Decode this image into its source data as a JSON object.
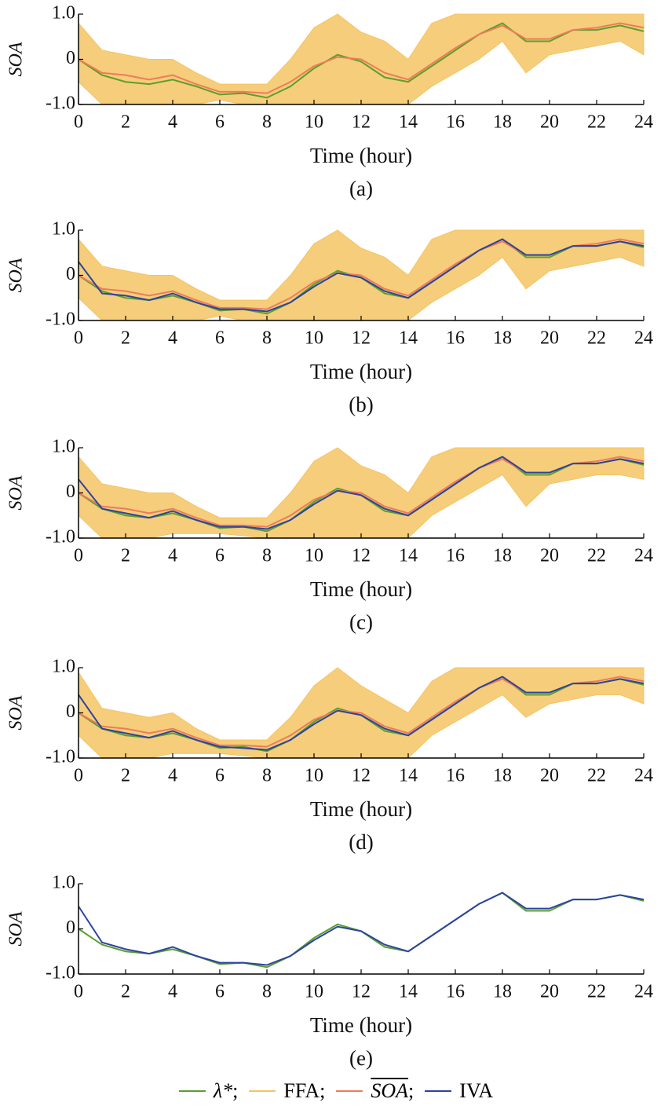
{
  "legend_separator": ";",
  "chart_data": [
    {
      "type": "line",
      "caption": "(a)",
      "xlabel": "Time (hour)",
      "ylabel": "SOA",
      "x": [
        0,
        1,
        2,
        3,
        4,
        5,
        6,
        7,
        8,
        9,
        10,
        11,
        12,
        13,
        14,
        15,
        16,
        17,
        18,
        19,
        20,
        21,
        22,
        23,
        24
      ],
      "xlim": [
        0,
        24
      ],
      "xticks": [
        0,
        2,
        4,
        6,
        8,
        10,
        12,
        14,
        16,
        18,
        20,
        22,
        24
      ],
      "ylim": [
        -1,
        1
      ],
      "yticks": [
        {
          "value": -1,
          "label": "-1.0"
        },
        0,
        {
          "value": 1,
          "label": "1.0"
        }
      ],
      "series": [
        {
          "name": "λ*",
          "color": "#5aa02c",
          "values": [
            0,
            -0.35,
            -0.5,
            -0.55,
            -0.45,
            -0.6,
            -0.78,
            -0.75,
            -0.85,
            -0.6,
            -0.2,
            0.1,
            -0.05,
            -0.4,
            -0.5,
            -0.15,
            0.2,
            0.55,
            0.8,
            0.4,
            0.4,
            0.65,
            0.65,
            0.75,
            0.62
          ]
        },
        {
          "name": "FFA",
          "color": "#f5c463",
          "upper": [
            0.8,
            0.2,
            0.1,
            0,
            0,
            -0.3,
            -0.55,
            -0.55,
            -0.55,
            0,
            0.7,
            1,
            0.6,
            0.4,
            0,
            0.8,
            1,
            1,
            1,
            1,
            1,
            1,
            1,
            1,
            1
          ],
          "lower": [
            -0.5,
            -1,
            -1,
            -1,
            -1,
            -1,
            -0.9,
            -1,
            -1,
            -1,
            -1,
            -1,
            -1,
            -1,
            -1,
            -0.6,
            -0.3,
            0,
            0.4,
            -0.3,
            0.1,
            0.2,
            0.3,
            0.4,
            0.1
          ]
        },
        {
          "name": "SOA",
          "color": "#ee7b5b",
          "values": [
            0,
            -0.3,
            -0.35,
            -0.45,
            -0.35,
            -0.55,
            -0.72,
            -0.72,
            -0.75,
            -0.5,
            -0.15,
            0.05,
            0,
            -0.3,
            -0.45,
            -0.1,
            0.25,
            0.55,
            0.75,
            0.45,
            0.45,
            0.65,
            0.7,
            0.8,
            0.7
          ]
        }
      ]
    },
    {
      "type": "line",
      "caption": "(b)",
      "xlabel": "Time (hour)",
      "ylabel": "SOA",
      "x": [
        0,
        1,
        2,
        3,
        4,
        5,
        6,
        7,
        8,
        9,
        10,
        11,
        12,
        13,
        14,
        15,
        16,
        17,
        18,
        19,
        20,
        21,
        22,
        23,
        24
      ],
      "xlim": [
        0,
        24
      ],
      "xticks": [
        0,
        2,
        4,
        6,
        8,
        10,
        12,
        14,
        16,
        18,
        20,
        22,
        24
      ],
      "ylim": [
        -1,
        1
      ],
      "yticks": [
        {
          "value": -1,
          "label": "-1.0"
        },
        0,
        {
          "value": 1,
          "label": "1.0"
        }
      ],
      "series": [
        {
          "name": "λ*",
          "color": "#5aa02c",
          "values": [
            0,
            -0.35,
            -0.5,
            -0.55,
            -0.45,
            -0.6,
            -0.78,
            -0.75,
            -0.85,
            -0.6,
            -0.2,
            0.1,
            -0.05,
            -0.4,
            -0.5,
            -0.15,
            0.2,
            0.55,
            0.8,
            0.4,
            0.4,
            0.65,
            0.65,
            0.75,
            0.62
          ]
        },
        {
          "name": "FFA",
          "color": "#f5c463",
          "upper": [
            0.8,
            0.2,
            0.1,
            0,
            0,
            -0.3,
            -0.55,
            -0.55,
            -0.55,
            0,
            0.7,
            1,
            0.6,
            0.4,
            0,
            0.8,
            1,
            1,
            1,
            1,
            1,
            1,
            1,
            1,
            1
          ],
          "lower": [
            -0.5,
            -1,
            -1,
            -1,
            -1,
            -1,
            -0.9,
            -1,
            -1,
            -1,
            -1,
            -1,
            -1,
            -1,
            -1,
            -0.6,
            -0.3,
            0,
            0.4,
            -0.3,
            0.1,
            0.2,
            0.3,
            0.4,
            0.2
          ]
        },
        {
          "name": "SOA",
          "color": "#ee7b5b",
          "values": [
            0,
            -0.3,
            -0.35,
            -0.45,
            -0.35,
            -0.55,
            -0.72,
            -0.72,
            -0.75,
            -0.5,
            -0.15,
            0.05,
            0,
            -0.3,
            -0.45,
            -0.1,
            0.25,
            0.55,
            0.75,
            0.45,
            0.45,
            0.65,
            0.7,
            0.8,
            0.7
          ]
        },
        {
          "name": "IVA",
          "color": "#2e43a0",
          "values": [
            0.3,
            -0.4,
            -0.45,
            -0.55,
            -0.4,
            -0.6,
            -0.75,
            -0.75,
            -0.8,
            -0.6,
            -0.25,
            0.05,
            -0.05,
            -0.35,
            -0.5,
            -0.15,
            0.2,
            0.55,
            0.8,
            0.45,
            0.45,
            0.65,
            0.65,
            0.75,
            0.65
          ]
        }
      ]
    },
    {
      "type": "line",
      "caption": "(c)",
      "xlabel": "Time (hour)",
      "ylabel": "SOA",
      "x": [
        0,
        1,
        2,
        3,
        4,
        5,
        6,
        7,
        8,
        9,
        10,
        11,
        12,
        13,
        14,
        15,
        16,
        17,
        18,
        19,
        20,
        21,
        22,
        23,
        24
      ],
      "xlim": [
        0,
        24
      ],
      "xticks": [
        0,
        2,
        4,
        6,
        8,
        10,
        12,
        14,
        16,
        18,
        20,
        22,
        24
      ],
      "ylim": [
        -1,
        1
      ],
      "yticks": [
        {
          "value": -1,
          "label": "-1.0"
        },
        0,
        {
          "value": 1,
          "label": "1.0"
        }
      ],
      "series": [
        {
          "name": "λ*",
          "color": "#5aa02c",
          "values": [
            0,
            -0.35,
            -0.5,
            -0.55,
            -0.45,
            -0.6,
            -0.78,
            -0.75,
            -0.85,
            -0.6,
            -0.2,
            0.1,
            -0.05,
            -0.4,
            -0.5,
            -0.15,
            0.2,
            0.55,
            0.8,
            0.4,
            0.4,
            0.65,
            0.65,
            0.75,
            0.62
          ]
        },
        {
          "name": "FFA",
          "color": "#f5c463",
          "upper": [
            0.8,
            0.2,
            0.1,
            0,
            0,
            -0.3,
            -0.55,
            -0.55,
            -0.55,
            0,
            0.7,
            1,
            0.6,
            0.4,
            0,
            0.8,
            1,
            1,
            1,
            1,
            1,
            1,
            1,
            1,
            1
          ],
          "lower": [
            -0.5,
            -1,
            -1,
            -1,
            -0.9,
            -0.9,
            -0.9,
            -0.95,
            -1,
            -1,
            -1,
            -1,
            -1,
            -1,
            -1,
            -0.5,
            -0.2,
            0.1,
            0.4,
            -0.3,
            0.2,
            0.3,
            0.4,
            0.4,
            0.3
          ]
        },
        {
          "name": "SOA",
          "color": "#ee7b5b",
          "values": [
            0,
            -0.3,
            -0.35,
            -0.45,
            -0.35,
            -0.55,
            -0.72,
            -0.72,
            -0.75,
            -0.5,
            -0.15,
            0.05,
            0,
            -0.3,
            -0.45,
            -0.1,
            0.25,
            0.55,
            0.75,
            0.45,
            0.45,
            0.65,
            0.7,
            0.8,
            0.7
          ]
        },
        {
          "name": "IVA",
          "color": "#2e43a0",
          "values": [
            0.3,
            -0.35,
            -0.45,
            -0.55,
            -0.4,
            -0.6,
            -0.75,
            -0.75,
            -0.8,
            -0.6,
            -0.25,
            0.05,
            -0.05,
            -0.35,
            -0.5,
            -0.15,
            0.2,
            0.55,
            0.8,
            0.45,
            0.45,
            0.65,
            0.65,
            0.75,
            0.65
          ]
        }
      ]
    },
    {
      "type": "line",
      "caption": "(d)",
      "xlabel": "Time (hour)",
      "ylabel": "SOA",
      "x": [
        0,
        1,
        2,
        3,
        4,
        5,
        6,
        7,
        8,
        9,
        10,
        11,
        12,
        13,
        14,
        15,
        16,
        17,
        18,
        19,
        20,
        21,
        22,
        23,
        24
      ],
      "xlim": [
        0,
        24
      ],
      "xticks": [
        0,
        2,
        4,
        6,
        8,
        10,
        12,
        14,
        16,
        18,
        20,
        22,
        24
      ],
      "ylim": [
        -1,
        1
      ],
      "yticks": [
        {
          "value": -1,
          "label": "-1.0"
        },
        0,
        {
          "value": 1,
          "label": "1.0"
        }
      ],
      "series": [
        {
          "name": "λ*",
          "color": "#5aa02c",
          "values": [
            0,
            -0.35,
            -0.5,
            -0.55,
            -0.45,
            -0.6,
            -0.78,
            -0.75,
            -0.85,
            -0.6,
            -0.2,
            0.1,
            -0.05,
            -0.4,
            -0.5,
            -0.15,
            0.2,
            0.55,
            0.8,
            0.4,
            0.4,
            0.65,
            0.65,
            0.75,
            0.62
          ]
        },
        {
          "name": "FFA",
          "color": "#f5c463",
          "upper": [
            0.9,
            0.1,
            0,
            -0.1,
            0,
            -0.35,
            -0.6,
            -0.6,
            -0.6,
            -0.1,
            0.6,
            1,
            0.6,
            0.3,
            0,
            0.7,
            1,
            1,
            1,
            1,
            1,
            1,
            1,
            1,
            1
          ],
          "lower": [
            -0.5,
            -1,
            -1,
            -1,
            -0.9,
            -0.9,
            -0.9,
            -0.95,
            -1,
            -1,
            -1,
            -1,
            -1,
            -1,
            -1,
            -0.5,
            -0.2,
            0.1,
            0.4,
            -0.1,
            0.2,
            0.3,
            0.4,
            0.4,
            0.2
          ]
        },
        {
          "name": "SOA",
          "color": "#ee7b5b",
          "values": [
            0,
            -0.3,
            -0.35,
            -0.45,
            -0.35,
            -0.55,
            -0.72,
            -0.72,
            -0.75,
            -0.5,
            -0.15,
            0.05,
            0,
            -0.3,
            -0.45,
            -0.1,
            0.25,
            0.55,
            0.75,
            0.45,
            0.45,
            0.65,
            0.7,
            0.8,
            0.7
          ]
        },
        {
          "name": "IVA",
          "color": "#2e43a0",
          "values": [
            0.4,
            -0.35,
            -0.45,
            -0.55,
            -0.4,
            -0.6,
            -0.75,
            -0.78,
            -0.82,
            -0.6,
            -0.25,
            0.05,
            -0.05,
            -0.35,
            -0.5,
            -0.15,
            0.2,
            0.55,
            0.8,
            0.45,
            0.45,
            0.65,
            0.65,
            0.75,
            0.65
          ]
        }
      ]
    },
    {
      "type": "line",
      "caption": "(e)",
      "xlabel": "Time (hour)",
      "ylabel": "SOA",
      "x": [
        0,
        1,
        2,
        3,
        4,
        5,
        6,
        7,
        8,
        9,
        10,
        11,
        12,
        13,
        14,
        15,
        16,
        17,
        18,
        19,
        20,
        21,
        22,
        23,
        24
      ],
      "xlim": [
        0,
        24
      ],
      "xticks": [
        0,
        2,
        4,
        6,
        8,
        10,
        12,
        14,
        16,
        18,
        20,
        22,
        24
      ],
      "ylim": [
        -1,
        1
      ],
      "yticks": [
        {
          "value": -1,
          "label": "-1.0"
        },
        0,
        {
          "value": 1,
          "label": "1.0"
        }
      ],
      "series": [
        {
          "name": "λ*",
          "color": "#5aa02c",
          "values": [
            0,
            -0.35,
            -0.5,
            -0.55,
            -0.45,
            -0.6,
            -0.78,
            -0.75,
            -0.85,
            -0.6,
            -0.2,
            0.1,
            -0.05,
            -0.4,
            -0.5,
            -0.15,
            0.2,
            0.55,
            0.8,
            0.4,
            0.4,
            0.65,
            0.65,
            0.75,
            0.62
          ]
        },
        {
          "name": "IVA",
          "color": "#2e43a0",
          "values": [
            0.5,
            -0.3,
            -0.45,
            -0.55,
            -0.4,
            -0.6,
            -0.75,
            -0.75,
            -0.8,
            -0.6,
            -0.25,
            0.05,
            -0.05,
            -0.35,
            -0.5,
            -0.15,
            0.2,
            0.55,
            0.8,
            0.45,
            0.45,
            0.65,
            0.65,
            0.75,
            0.65
          ]
        }
      ]
    }
  ]
}
